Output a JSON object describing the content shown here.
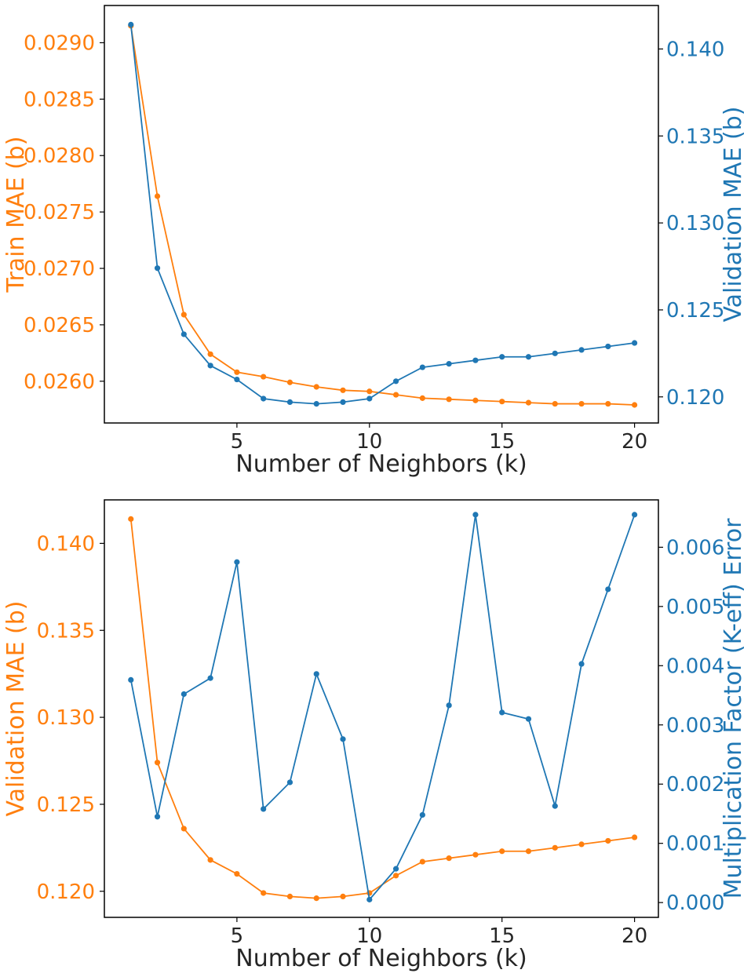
{
  "figure": {
    "background": "#ffffff"
  },
  "colors": {
    "orange": "#ff7f0e",
    "blue": "#1f77b4",
    "text": "#262626",
    "frame": "#000000"
  },
  "chart_data": [
    {
      "type": "line",
      "xlabel": "Number of Neighbors (k)",
      "x": [
        1,
        2,
        3,
        4,
        5,
        6,
        7,
        8,
        9,
        10,
        11,
        12,
        13,
        14,
        15,
        16,
        17,
        18,
        19,
        20
      ],
      "xticks": [
        5,
        10,
        15,
        20
      ],
      "xlim": [
        0.0,
        20.9
      ],
      "grid": false,
      "left_axis": {
        "label": "Train MAE (b)",
        "color": "#ff7f0e",
        "ylim": [
          0.02563,
          0.02933
        ],
        "ticks": [
          "0.0260",
          "0.0265",
          "0.0270",
          "0.0275",
          "0.0280",
          "0.0285",
          "0.0290"
        ],
        "values": [
          0.02915,
          0.02764,
          0.02659,
          0.02624,
          0.02608,
          0.02604,
          0.02599,
          0.02595,
          0.02592,
          0.02591,
          0.02588,
          0.02585,
          0.02584,
          0.02583,
          0.02582,
          0.02581,
          0.0258,
          0.0258,
          0.0258,
          0.02579
        ]
      },
      "right_axis": {
        "label": "Validation MAE (b)",
        "color": "#1f77b4",
        "ylim": [
          0.1185,
          0.1425
        ],
        "ticks": [
          "0.120",
          "0.125",
          "0.130",
          "0.135",
          "0.140"
        ],
        "values": [
          0.1414,
          0.1274,
          0.1236,
          0.1218,
          0.121,
          0.1199,
          0.1197,
          0.1196,
          0.1197,
          0.1199,
          0.1209,
          0.1217,
          0.1219,
          0.1221,
          0.1223,
          0.1223,
          0.1225,
          0.1227,
          0.1229,
          0.1231
        ]
      }
    },
    {
      "type": "line",
      "xlabel": "Number of Neighbors (k)",
      "x": [
        1,
        2,
        3,
        4,
        5,
        6,
        7,
        8,
        9,
        10,
        11,
        12,
        13,
        14,
        15,
        16,
        17,
        18,
        19,
        20
      ],
      "xticks": [
        5,
        10,
        15,
        20
      ],
      "xlim": [
        0.0,
        20.9
      ],
      "grid": false,
      "left_axis": {
        "label": "Validation MAE (b)",
        "color": "#ff7f0e",
        "ylim": [
          0.1185,
          0.1425
        ],
        "ticks": [
          "0.120",
          "0.125",
          "0.130",
          "0.135",
          "0.140"
        ],
        "values": [
          0.1414,
          0.1274,
          0.1236,
          0.1218,
          0.121,
          0.1199,
          0.1197,
          0.1196,
          0.1197,
          0.1199,
          0.1209,
          0.1217,
          0.1219,
          0.1221,
          0.1223,
          0.1223,
          0.1225,
          0.1227,
          0.1229,
          0.1231
        ]
      },
      "right_axis": {
        "label": "Multiplication Factor (K-eff) Error",
        "color": "#1f77b4",
        "ylim": [
          -0.00025,
          0.0068
        ],
        "ticks": [
          "0.000",
          "0.001",
          "0.002",
          "0.003",
          "0.004",
          "0.005",
          "0.006"
        ],
        "values": [
          0.00376,
          0.00145,
          0.00352,
          0.00379,
          0.00575,
          0.00158,
          0.00203,
          0.00386,
          0.00276,
          5e-05,
          0.00057,
          0.00148,
          0.00333,
          0.00655,
          0.00321,
          0.0031,
          0.00163,
          0.00403,
          0.00529,
          0.00655
        ]
      }
    }
  ]
}
